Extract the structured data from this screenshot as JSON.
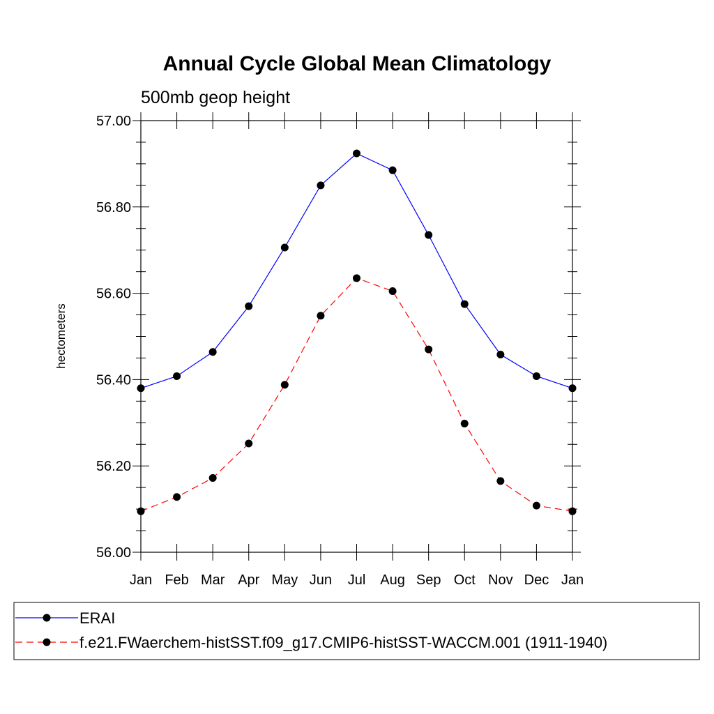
{
  "chart_data": {
    "type": "line",
    "title": "Annual Cycle Global Mean Climatology",
    "subtitle": "500mb geop height",
    "xlabel": "",
    "ylabel": "hectometers",
    "categories": [
      "Jan",
      "Feb",
      "Mar",
      "Apr",
      "May",
      "Jun",
      "Jul",
      "Aug",
      "Sep",
      "Oct",
      "Nov",
      "Dec",
      "Jan"
    ],
    "ylim": [
      56.0,
      57.0
    ],
    "y_ticks": [
      "56.00",
      "56.20",
      "56.40",
      "56.60",
      "56.80",
      "57.00"
    ],
    "y_tick_values": [
      56.0,
      56.2,
      56.4,
      56.6,
      56.8,
      57.0
    ],
    "grid": false,
    "legend_position": "bottom",
    "series": [
      {
        "name": "ERAI",
        "color": "#0000ff",
        "line_style": "solid",
        "marker": "filled-circle",
        "values": [
          56.38,
          56.408,
          56.464,
          56.57,
          56.706,
          56.85,
          56.924,
          56.885,
          56.735,
          56.575,
          56.458,
          56.408,
          56.38
        ]
      },
      {
        "name": "f.e21.FWaerchem-histSST.f09_g17.CMIP6-histSST-WACCM.001 (1911-1940)",
        "color": "#ff0000",
        "line_style": "dashed",
        "marker": "filled-circle",
        "values": [
          56.095,
          56.128,
          56.172,
          56.252,
          56.388,
          56.548,
          56.635,
          56.605,
          56.47,
          56.298,
          56.165,
          56.108,
          56.095
        ]
      }
    ]
  }
}
